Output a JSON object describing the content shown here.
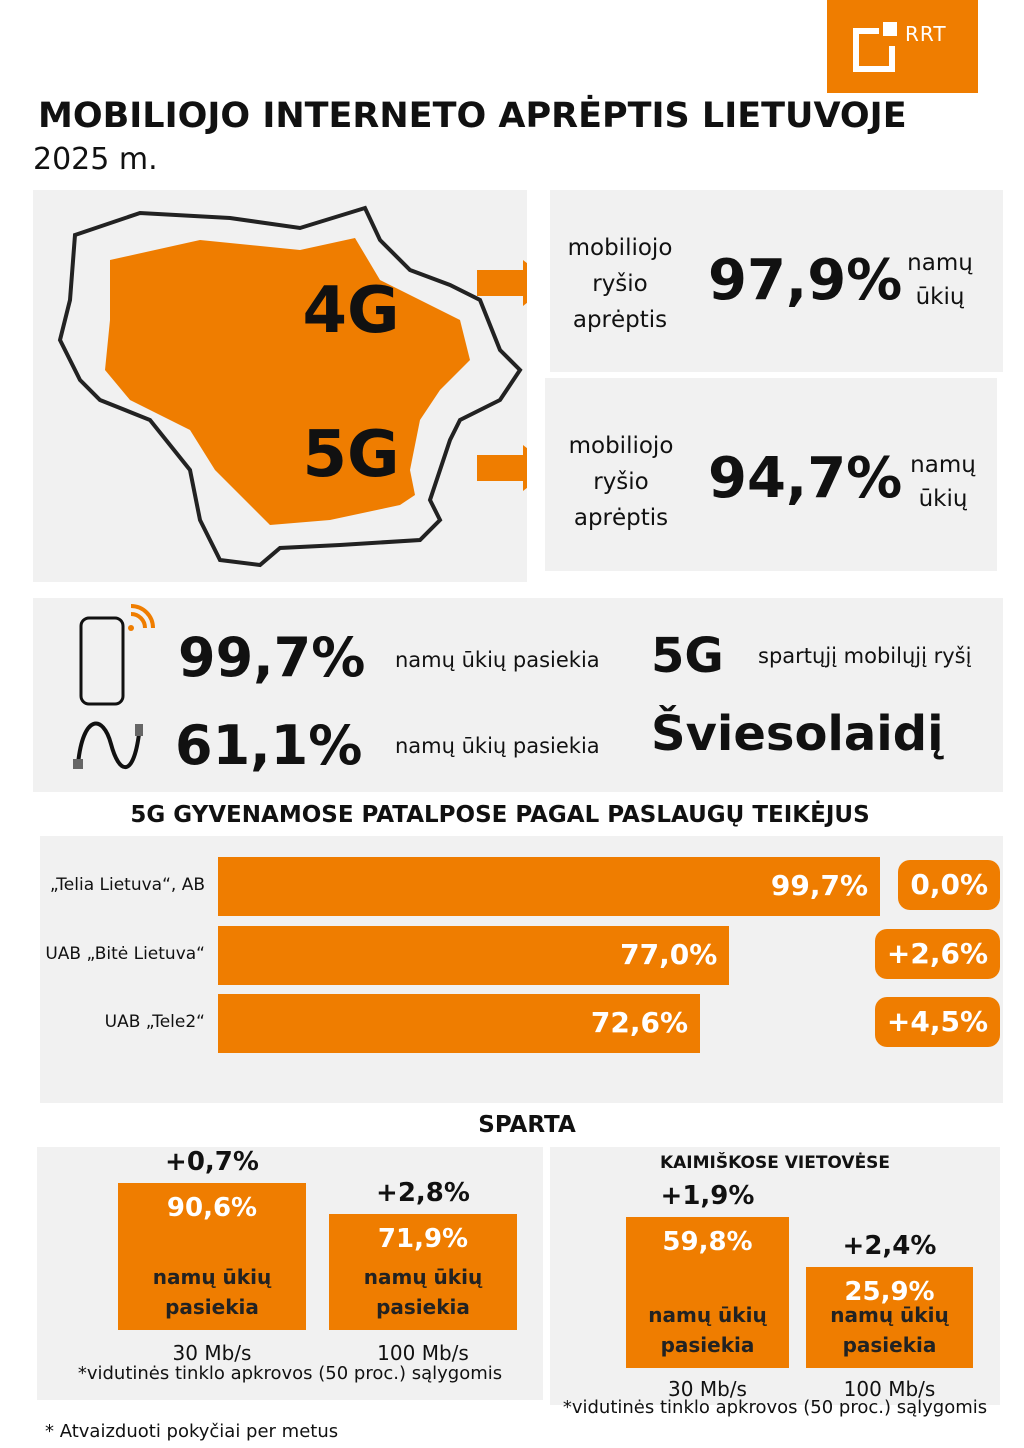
{
  "header": {
    "logo": "RRT",
    "title": "MOBILIOJO INTERNETO APRĖPTIS LIETUVOJE",
    "subtitle": "2025 m."
  },
  "map": {
    "labels": [
      "4G",
      "5G"
    ]
  },
  "coverage": [
    {
      "text": "mobiliojo ryšio aprėptis",
      "value": "97,9%",
      "unit": "namų ūkių"
    },
    {
      "text": "mobiliojo ryšio aprėptis",
      "value": "94,7%",
      "unit": "namų ūkių"
    }
  ],
  "reach": [
    {
      "value": "99,7%",
      "text": "namų ūkių pasiekia",
      "tech": "5G",
      "description": "spartųjį mobilųjį ryšį"
    },
    {
      "value": "61,1%",
      "text": "namų ūkių pasiekia",
      "tech": "Šviesolaidį"
    }
  ],
  "chart_data": [
    {
      "type": "bar",
      "title": "5G GYVENAMOSE PATALPOSE PAGAL PASLAUGŲ TEIKĖJUS",
      "categories": [
        "„Telia Lietuva“, AB",
        "UAB „Bitė Lietuva“",
        "UAB „Tele2“"
      ],
      "values": [
        99.7,
        77.0,
        72.6
      ],
      "value_labels": [
        "99,7%",
        "77,0%",
        "72,6%"
      ],
      "changes": [
        0.0,
        2.6,
        4.5
      ],
      "change_labels": [
        "0,0%",
        "+2,6%",
        "+4,5%"
      ],
      "color": "#ef7d00"
    },
    {
      "type": "column",
      "title": "SPARTA",
      "categories": [
        "30 Mb/s",
        "100 Mb/s"
      ],
      "values": [
        90.6,
        71.9
      ],
      "value_labels": [
        "90,6%",
        "71,9%"
      ],
      "changes": [
        0.7,
        2.8
      ],
      "change_labels": [
        "+0,7%",
        "+2,8%"
      ],
      "bar_text": "namų ūkių pasiekia",
      "note": "*vidutinės tinklo apkrovos (50 proc.) sąlygomis",
      "color": "#ef7d00"
    },
    {
      "type": "column",
      "subtitle": "KAIMIŠKOSE VIETOVĖSE",
      "categories": [
        "30 Mb/s",
        "100 Mb/s"
      ],
      "values": [
        59.8,
        25.9
      ],
      "value_labels": [
        "59,8%",
        "25,9%"
      ],
      "changes": [
        1.9,
        2.4
      ],
      "change_labels": [
        "+1,9%",
        "+2,4%"
      ],
      "bar_text": "namų ūkių pasiekia",
      "note": "*vidutinės tinklo apkrovos (50 proc.) sąlygomis",
      "color": "#ef7d00"
    }
  ],
  "footnote": "* Atvaizduoti pokyčiai per metus"
}
